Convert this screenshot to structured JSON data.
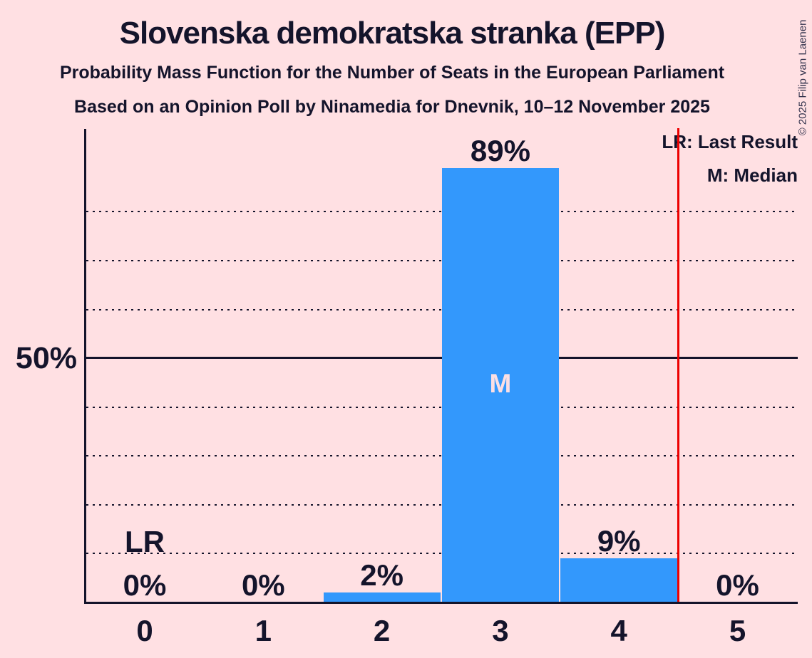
{
  "chart_data": {
    "type": "bar",
    "title": "Slovenska demokratska stranka (EPP)",
    "subtitle1": "Probability Mass Function for the Number of Seats in the European Parliament",
    "subtitle2": "Based on an Opinion Poll by Ninamedia for Dnevnik, 10–12 November 2025",
    "categories": [
      "0",
      "1",
      "2",
      "3",
      "4",
      "5"
    ],
    "values": [
      0,
      0,
      2,
      89,
      9,
      0
    ],
    "bar_labels": [
      "0%",
      "0%",
      "2%",
      "89%",
      "9%",
      "0%"
    ],
    "xlabel": "",
    "ylabel": "",
    "ytick_label": "50%",
    "ylim": [
      0,
      97
    ],
    "gridline_pcts": [
      10,
      20,
      30,
      40,
      50,
      60,
      70,
      80
    ],
    "legend": [
      "LR: Last Result",
      "M: Median"
    ],
    "median_label": "M",
    "median_seat": 3,
    "lr_label": "LR",
    "lr_label_seat": 0,
    "last_result_line_x": 4.5,
    "copyright": "© 2025 Filip van Laenen",
    "colors": {
      "background": "#ffe0e3",
      "bar": "#3398fc",
      "text": "#14142b",
      "last_result_line": "#ed0000",
      "median_letter": "#fbdfe3"
    }
  }
}
